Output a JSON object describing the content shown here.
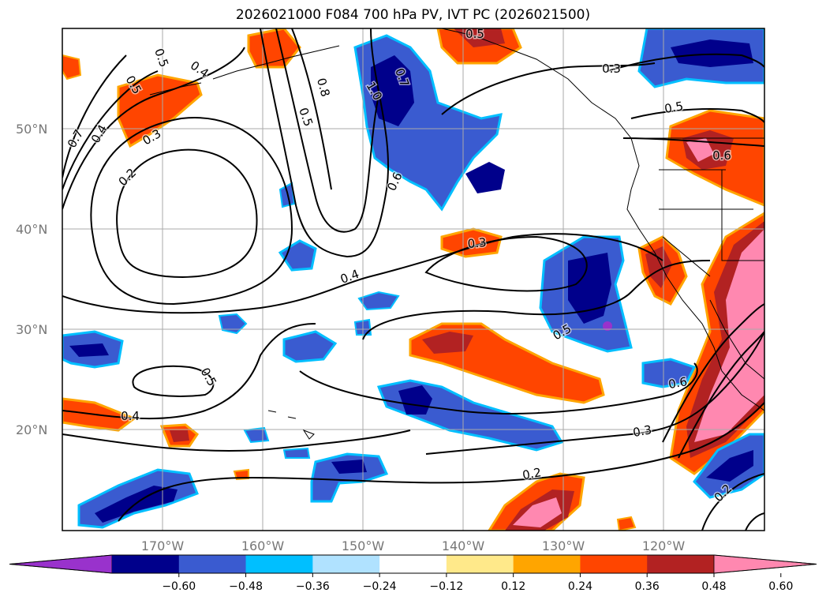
{
  "title": "2026021000 F084 700 hPa PV, IVT PC (2026021500)",
  "lat_labels": [
    "50°N",
    "40°N",
    "30°N",
    "20°N"
  ],
  "lon_labels": [
    "170°W",
    "160°W",
    "150°W",
    "140°W",
    "130°W",
    "120°W"
  ],
  "contour_labels": [
    "0.4",
    "0.5",
    "0.5",
    "0.8",
    "1.0",
    "0.7",
    "0.5",
    "0.3",
    "0.4",
    "0.6",
    "0.5",
    "0.7",
    "0.3",
    "0.2",
    "0.6",
    "0.3",
    "0.4",
    "0.5",
    "0.5",
    "0.6",
    "0.3",
    "0.2",
    "0.4",
    "0.2",
    "0.5"
  ],
  "colorbar": {
    "ticks": [
      "−0.60",
      "−0.48",
      "−0.36",
      "−0.24",
      "−0.12",
      "0.12",
      "0.24",
      "0.36",
      "0.48",
      "0.60"
    ],
    "colors": [
      "#9932cc",
      "#00008b",
      "#3a5bd0",
      "#00bfff",
      "#b0e2ff",
      "#ffffff",
      "#ffe98a",
      "#ffa500",
      "#ff4500",
      "#b22222",
      "#ff88b0"
    ]
  },
  "colors": {
    "frame": "#000000",
    "grid": "#aaaaaa",
    "contour": "#000000"
  }
}
